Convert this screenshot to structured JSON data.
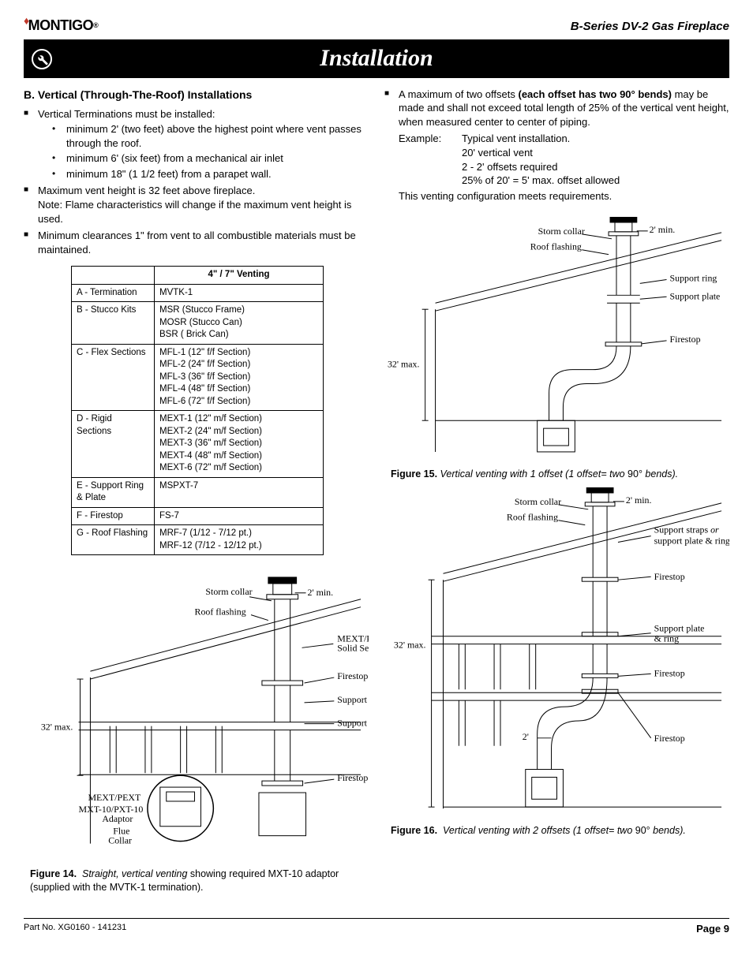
{
  "header": {
    "brand": "MONTIGO",
    "product": "B-Series DV-2 Gas Fireplace",
    "banner_title": "Installation"
  },
  "left": {
    "heading": "B. Vertical (Through-The-Roof) Installations",
    "b1": "Vertical Terminations must be installed:",
    "b1a": "minimum 2' (two feet) above the highest point where vent passes through the roof.",
    "b1b": "minimum 6' (six feet) from a mechanical air inlet",
    "b1c": "minimum 18\" (1 1/2 feet) from a parapet wall.",
    "b2": "Maximum vent height is 32 feet above fireplace.",
    "b2note": "Note: Flame characteristics will change if the maximum vent height is used.",
    "b3": "Minimum clearances 1\" from vent to all combustible materials must be maintained.",
    "table_header": "4\" / 7\" Venting",
    "rows": [
      {
        "k": "A - Termination",
        "v": "MVTK-1"
      },
      {
        "k": "B - Stucco Kits",
        "v": "MSR (Stucco Frame)\nMOSR (Stucco Can)\nBSR ( Brick Can)"
      },
      {
        "k": "C - Flex Sections",
        "v": "MFL-1 (12\" f/f Section)\nMFL-2 (24\" f/f Section)\nMFL-3 (36\" f/f Section)\nMFL-4 (48\" f/f Section)\nMFL-6 (72\" f/f Section)"
      },
      {
        "k": "D - Rigid Sections",
        "v": "MEXT-1 (12\" m/f Section)\nMEXT-2 (24\" m/f Section)\nMEXT-3 (36\" m/f Section)\nMEXT-4 (48\" m/f Section)\nMEXT-6 (72\" m/f Section)"
      },
      {
        "k": "E - Support Ring & Plate",
        "v": "MSPXT-7"
      },
      {
        "k": "F - Firestop",
        "v": "FS-7"
      },
      {
        "k": "G - Roof Flashing",
        "v": "MRF-7 (1/12 - 7/12 pt.)\nMRF-12 (7/12 - 12/12 pt.)"
      }
    ],
    "fig14": {
      "num": "Figure 14.",
      "desc_italic": "Straight, vertical venting",
      "desc_rest": " showing required MXT-10 adaptor (supplied with the MVTK-1 termination).",
      "labels": {
        "storm": "Storm collar",
        "roof_flash": "Roof flashing",
        "two_min": "2' min.",
        "thirty_two": "32' max.",
        "mext_pext": "MEXT/PEXT",
        "solid": "MEXT/PEXT Solid Section",
        "firestop": "Firestop",
        "support_ring": "Support ring",
        "support_plate": "Support plate",
        "mxt10": "MXT-10/PXT-10 Adaptor",
        "flue": "Flue Collar"
      }
    }
  },
  "right": {
    "intro_a": "A maximum of two offsets ",
    "intro_b": "(each offset has two 90° bends)",
    "intro_c": " may be made and shall not exceed total length of 25% of the vertical vent height, when measured center to center of piping.",
    "example_label": "Example:",
    "example_val": "Typical vent installation.",
    "ex1": "20' vertical vent",
    "ex2": "2 - 2' offsets required",
    "ex3": "25% of 20' = 5' max. offset allowed",
    "ex_end": "This venting configuration meets requirements.",
    "fig15": {
      "num": "Figure 15.",
      "desc_italic": "Vertical venting with 1 offset (1 offset= two",
      "desc_rest": " 90° ",
      "desc_tail": "bends).",
      "labels": {
        "storm": "Storm collar",
        "roof_flash": "Roof flashing",
        "two_min": "2' min.",
        "thirty_two": "32' max.",
        "support_ring": "Support ring",
        "support_plate": "Support plate",
        "firestop": "Firestop"
      }
    },
    "fig16": {
      "num": "Figure 16.",
      "desc_italic": "Vertical venting with 2 offsets (1 offset= two",
      "desc_rest": " 90° ",
      "desc_tail": "bends).",
      "labels": {
        "storm": "Storm collar",
        "roof_flash": "Roof flashing",
        "two_min": "2' min.",
        "thirty_two": "32' max.",
        "support_straps": "Support straps or support plate & ring",
        "firestop": "Firestop",
        "support_plate_ring": "Support plate & ring",
        "two_ft": "2'"
      }
    }
  },
  "footer": {
    "part": "Part No. XG0160 - 141231",
    "page": "Page 9"
  },
  "colors": {
    "flame": "#c0392b",
    "black": "#000000"
  }
}
